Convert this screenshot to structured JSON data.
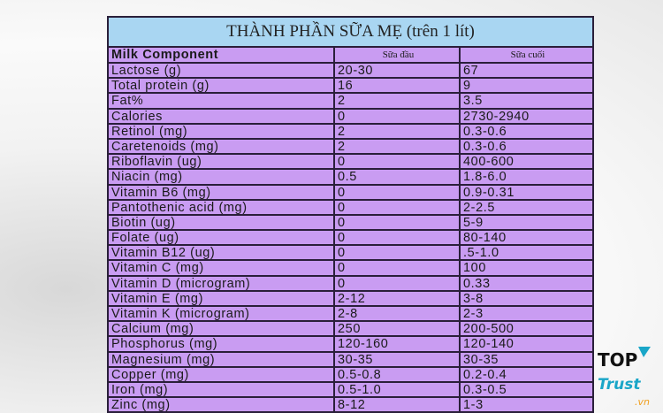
{
  "title": "THÀNH PHẦN SỮA MẸ (trên 1 lít)",
  "headers": [
    "Milk Component",
    "Sữa đầu",
    "Sữa cuối"
  ],
  "rows": [
    [
      "Lactose (g)",
      "20-30",
      "67"
    ],
    [
      "Total protein (g)",
      "16",
      "9"
    ],
    [
      "Fat%",
      "2",
      "3.5"
    ],
    [
      "Calories",
      "0",
      "2730-2940"
    ],
    [
      "Retinol (mg)",
      "2",
      "0.3-0.6"
    ],
    [
      "Caretenoids (mg)",
      "2",
      "0.3-0.6"
    ],
    [
      "Riboflavin (ug)",
      "0",
      "400-600"
    ],
    [
      "Niacin (mg)",
      "0.5",
      "1.8-6.0"
    ],
    [
      "Vitamin B6 (mg)",
      "0",
      "0.9-0.31"
    ],
    [
      "Pantothenic acid (mg)",
      "0",
      "2-2.5"
    ],
    [
      "Biotin (ug)",
      "0",
      "5-9"
    ],
    [
      "Folate (ug)",
      "0",
      "80-140"
    ],
    [
      "Vitamin B12 (ug)",
      "0",
      ".5-1.0"
    ],
    [
      "Vitamin C (mg)",
      "0",
      "100"
    ],
    [
      "Vitamin D (microgram)",
      "0",
      "0.33"
    ],
    [
      "Vitamin E (mg)",
      "2-12",
      "3-8"
    ],
    [
      "Vitamin K (microgram)",
      "2-8",
      "2-3"
    ],
    [
      "Calcium (mg)",
      "250",
      "200-500"
    ],
    [
      "Phosphorus (mg)",
      "120-160",
      "120-140"
    ],
    [
      "Magnesium (mg)",
      "30-35",
      "30-35"
    ],
    [
      "Copper (mg)",
      "0.5-0.8",
      "0.2-0.4"
    ],
    [
      "Iron (mg)",
      "0.5-1.0",
      "0.3-0.5"
    ],
    [
      "Zinc (mg)",
      "8-12",
      "1-3"
    ]
  ],
  "watermark": {
    "text": "TOPTrust.vn",
    "colors": {
      "top": "#111111",
      "trust": "#1aa6c8",
      "vn": "#f0a020"
    }
  },
  "colors": {
    "title_bg": "#a9d6f2",
    "cell_bg": "#c99cf2",
    "border": "#2a1f3a"
  }
}
